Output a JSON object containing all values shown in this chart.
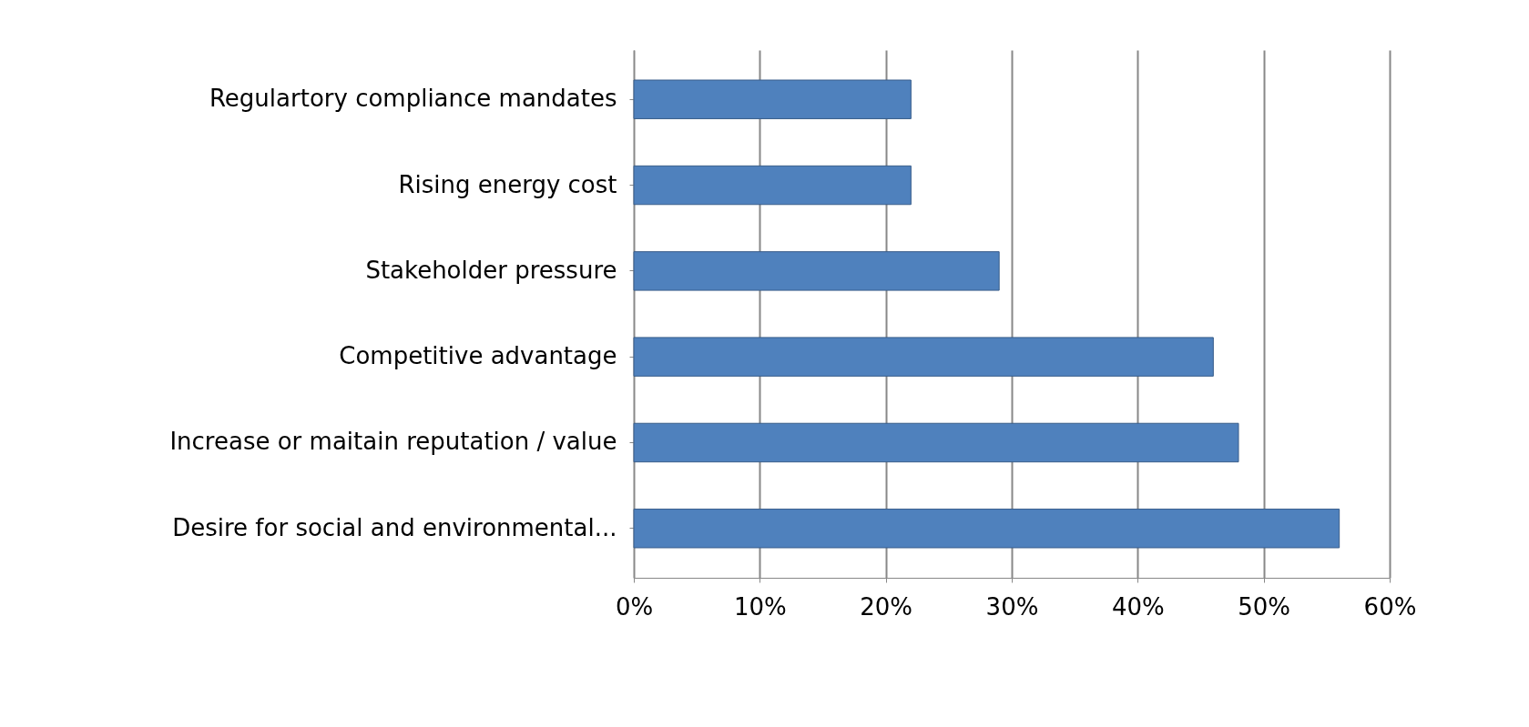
{
  "chart_data": {
    "type": "bar",
    "orientation": "horizontal",
    "categories": [
      "Regulartory compliance mandates",
      "Rising energy cost",
      "Stakeholder pressure",
      "Competitive advantage",
      "Increase or maitain reputation / value",
      "Desire for social and environmental..."
    ],
    "values": [
      22,
      22,
      29,
      46,
      48,
      56
    ],
    "color": "#4f81bd",
    "xlim": [
      0,
      60
    ],
    "xticks": [
      {
        "value": 0,
        "label": "0%"
      },
      {
        "value": 10,
        "label": "10%"
      },
      {
        "value": 20,
        "label": "20%"
      },
      {
        "value": 30,
        "label": "30%"
      },
      {
        "value": 40,
        "label": "40%"
      },
      {
        "value": 50,
        "label": "50%"
      },
      {
        "value": 60,
        "label": "60%"
      }
    ],
    "grid": "x"
  }
}
